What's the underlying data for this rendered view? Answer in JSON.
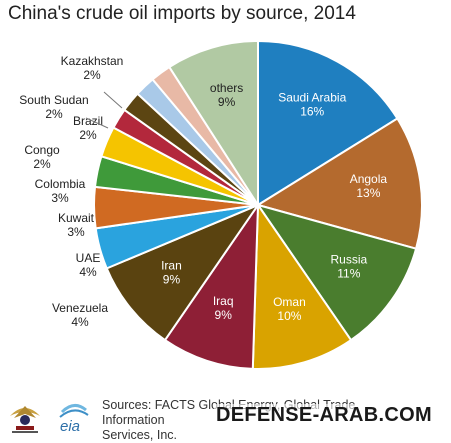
{
  "chart_data": {
    "type": "pie",
    "title": "China's crude oil imports by source, 2014",
    "slices": [
      {
        "label": "Saudi Arabia",
        "value_label": "16%",
        "value": 16,
        "color": "#1f7fc0"
      },
      {
        "label": "Angola",
        "value_label": "13%",
        "value": 13,
        "color": "#b46a2e"
      },
      {
        "label": "Russia",
        "value_label": "11%",
        "value": 11,
        "color": "#4a7d2e"
      },
      {
        "label": "Oman",
        "value_label": "10%",
        "value": 10,
        "color": "#d9a300"
      },
      {
        "label": "Iraq",
        "value_label": "9%",
        "value": 9,
        "color": "#8e1f36"
      },
      {
        "label": "Iran",
        "value_label": "9%",
        "value": 9,
        "color": "#5a4310"
      },
      {
        "label": "Venezuela",
        "value_label": "4%",
        "value": 4,
        "color": "#2aa3de"
      },
      {
        "label": "UAE",
        "value_label": "4%",
        "value": 4,
        "color": "#d06a22"
      },
      {
        "label": "Kuwait",
        "value_label": "3%",
        "value": 3,
        "color": "#3f9a3a"
      },
      {
        "label": "Colombia",
        "value_label": "3%",
        "value": 3,
        "color": "#f5c400"
      },
      {
        "label": "Congo",
        "value_label": "2%",
        "value": 2,
        "color": "#b3283c"
      },
      {
        "label": "Brazil",
        "value_label": "2%",
        "value": 2,
        "color": "#5c4512"
      },
      {
        "label": "South Sudan",
        "value_label": "2%",
        "value": 2,
        "color": "#a9c9e8"
      },
      {
        "label": "Kazakhstan",
        "value_label": "2%",
        "value": 2,
        "color": "#e8b9a6"
      },
      {
        "label": "others",
        "value_label": "9%",
        "value": 9,
        "color": "#b1c9a3"
      }
    ],
    "start_angle_deg": 0,
    "direction": "clockwise",
    "legend": "none"
  },
  "source": {
    "text_line1": "Sources: FACTS Global Energy, Global Trade Information",
    "text_line2": "Services, Inc."
  },
  "logos": {
    "eia": "eia"
  },
  "watermark": "DEFENSE-ARAB.COM"
}
